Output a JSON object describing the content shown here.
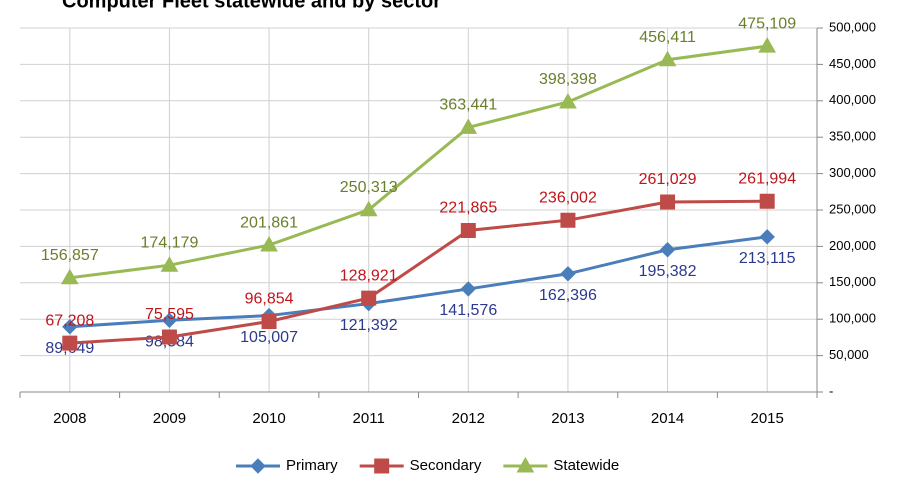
{
  "chart_data": {
    "type": "line",
    "title": "Computer Fleet statewide and by sector",
    "categories": [
      "2008",
      "2009",
      "2010",
      "2011",
      "2012",
      "2013",
      "2014",
      "2015"
    ],
    "series": [
      {
        "name": "Primary",
        "color": "#4a7ebb",
        "label_color": "#2b3990",
        "marker": "diamond",
        "label_position": "below",
        "values": [
          89649,
          98584,
          105007,
          121392,
          141576,
          162396,
          195382,
          213115
        ],
        "value_labels": [
          "89,649",
          "98,584",
          "105,007",
          "121,392",
          "141,576",
          "162,396",
          "195,382",
          "213,115"
        ]
      },
      {
        "name": "Secondary",
        "color": "#be4b48",
        "label_color": "#c0141b",
        "marker": "square",
        "label_position": "above",
        "values": [
          67208,
          75595,
          96854,
          128921,
          221865,
          236002,
          261029,
          261994
        ],
        "value_labels": [
          "67,208",
          "75,595",
          "96,854",
          "128,921",
          "221,865",
          "236,002",
          "261,029",
          "261,994"
        ]
      },
      {
        "name": "Statewide",
        "color": "#98b954",
        "label_color": "#6a7f2c",
        "marker": "triangle",
        "label_position": "above",
        "values": [
          156857,
          174179,
          201861,
          250313,
          363441,
          398398,
          456411,
          475109
        ],
        "value_labels": [
          "156,857",
          "174,179",
          "201,861",
          "250,313",
          "363,441",
          "398,398",
          "456,411",
          "475,109"
        ]
      }
    ],
    "ylim": [
      0,
      500000
    ],
    "yticks": [
      {
        "value": 0,
        "label": "-"
      },
      {
        "value": 50000,
        "label": "50,000"
      },
      {
        "value": 100000,
        "label": "100,000"
      },
      {
        "value": 150000,
        "label": "150,000"
      },
      {
        "value": 200000,
        "label": "200,000"
      },
      {
        "value": 250000,
        "label": "250,000"
      },
      {
        "value": 300000,
        "label": "300,000"
      },
      {
        "value": 350000,
        "label": "350,000"
      },
      {
        "value": 400000,
        "label": "400,000"
      },
      {
        "value": 450000,
        "label": "450,000"
      },
      {
        "value": 500000,
        "label": "500,000"
      }
    ],
    "y_axis_side": "right",
    "grid": true,
    "legend": "bottom"
  }
}
